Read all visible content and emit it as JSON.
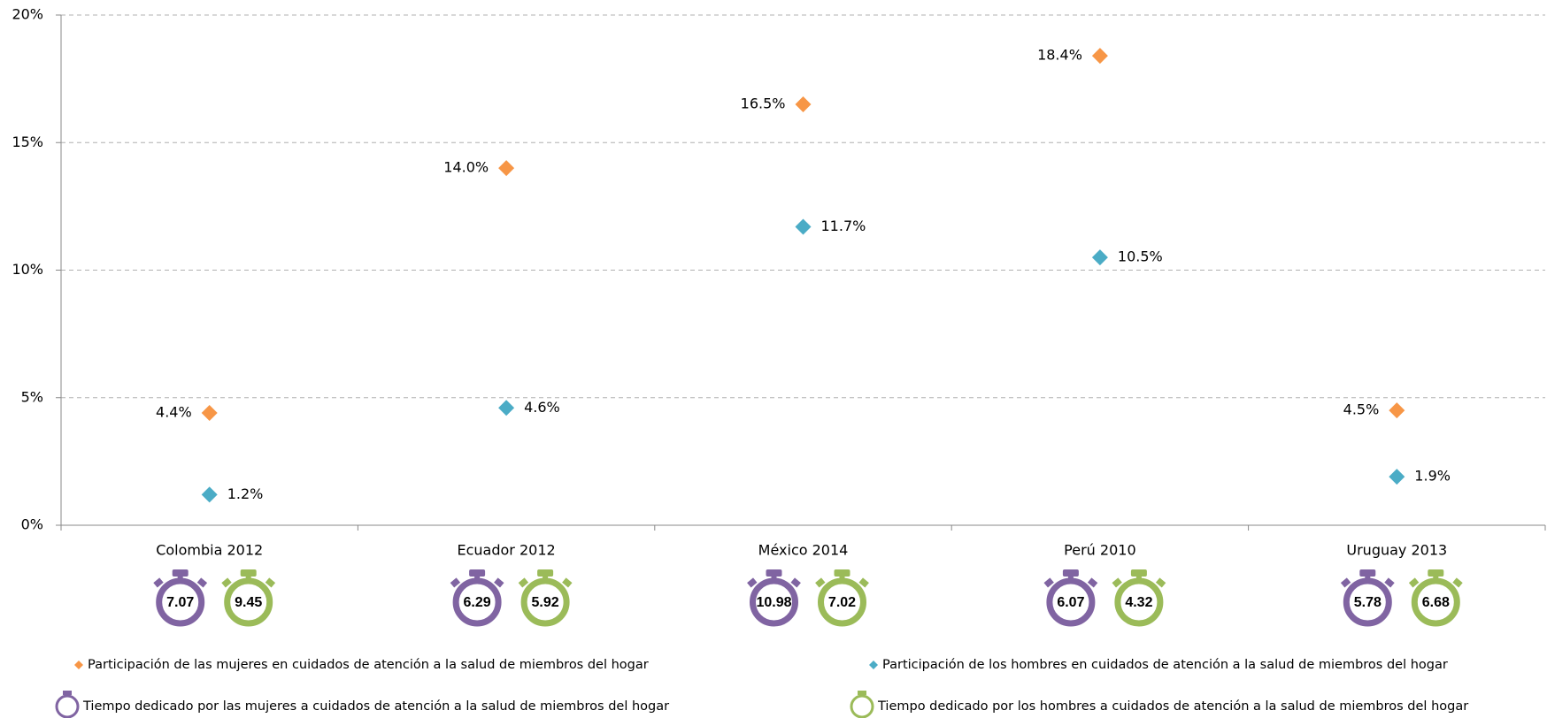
{
  "chart_data": {
    "type": "scatter",
    "categories": [
      "Colombia 2012",
      "Ecuador 2012",
      "México 2014",
      "Perú 2010",
      "Uruguay 2013"
    ],
    "series": [
      {
        "name": "Participación de las mujeres en cuidados de atención a la salud de miembros del hogar",
        "color": "#f79646",
        "values": [
          4.4,
          14.0,
          16.5,
          18.4,
          4.5
        ],
        "value_labels": [
          "4.4%",
          "14.0%",
          "16.5%",
          "18.4%",
          "4.5%"
        ]
      },
      {
        "name": "Participación de los hombres en cuidados de atención a la salud de miembros del hogar",
        "color": "#4bacc6",
        "values": [
          1.2,
          4.6,
          11.7,
          10.5,
          1.9
        ],
        "value_labels": [
          "1.2%",
          "4.6%",
          "11.7%",
          "10.5%",
          "1.9%"
        ]
      }
    ],
    "time_series": [
      {
        "name": "Tiempo dedicado por las mujeres a cuidados de atención a la salud de miembros del hogar",
        "color": "#8064a2",
        "values": [
          7.07,
          6.29,
          10.98,
          6.07,
          5.78
        ]
      },
      {
        "name": "Tiempo dedicado por los hombres a cuidados de atención a la salud de miembros del hogar",
        "color": "#9bbb59",
        "values": [
          9.45,
          5.92,
          7.02,
          4.32,
          6.68
        ]
      }
    ],
    "ylim": [
      0,
      20
    ],
    "yticks": [
      {
        "value": 0,
        "label": "0%"
      },
      {
        "value": 5,
        "label": "5%"
      },
      {
        "value": 10,
        "label": "10%"
      },
      {
        "value": 15,
        "label": "15%"
      },
      {
        "value": 20,
        "label": "20%"
      }
    ],
    "grid": true
  }
}
